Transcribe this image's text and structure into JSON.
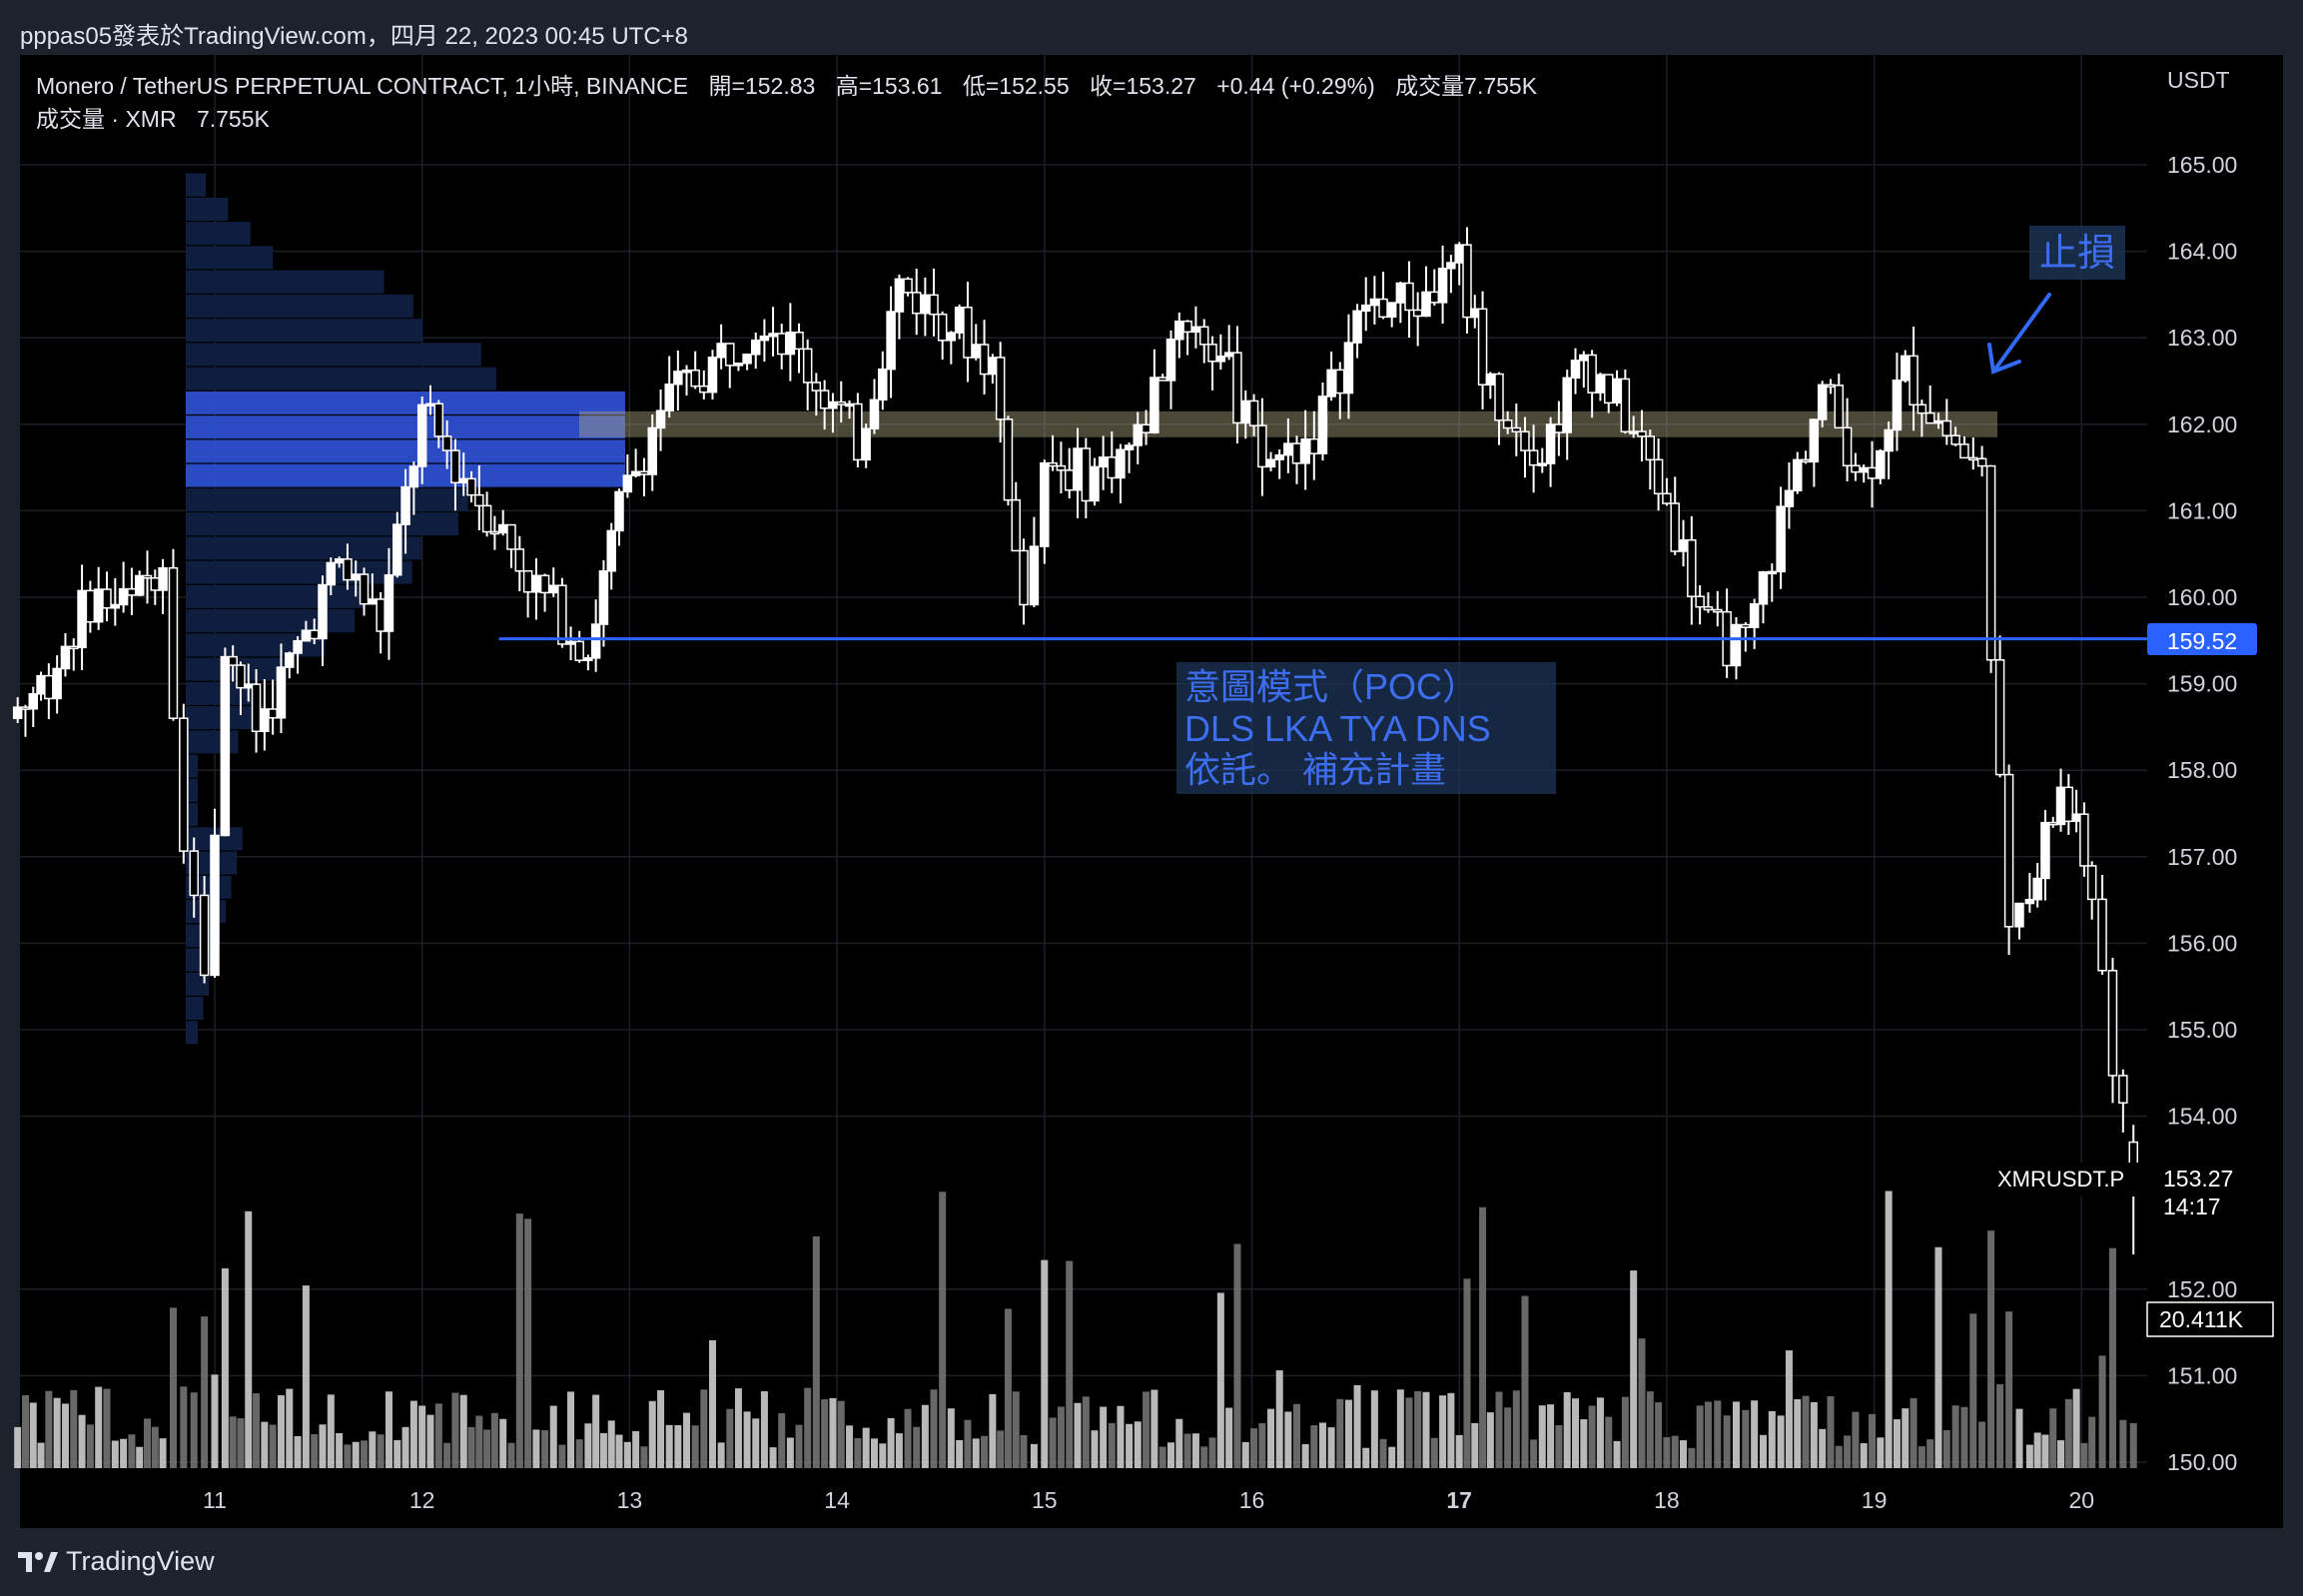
{
  "header": {
    "publisher": "pppas05發表於TradingView.com，四月 22, 2023 00:45 UTC+8"
  },
  "legend": {
    "symbol": "Monero / TetherUS PERPETUAL CONTRACT, 1小時, BINANCE",
    "open": "開=152.83",
    "high": "高=153.61",
    "low": "低=152.55",
    "close": "收=153.27",
    "change": "+0.44 (+0.29%)",
    "volume": "成交量7.755K",
    "volume_indicator_label": "成交量 · XMR",
    "volume_indicator_value": "7.755K"
  },
  "footer": {
    "brand": "TradingView"
  },
  "colors": {
    "background": "#000000",
    "candle": "#ffffff",
    "volume": "#8a8a8a",
    "accent_blue": "#2962ff",
    "annotation_text": "#3d6ef0",
    "zone": "#b3ac86",
    "profile_dark": "#0f1d3f",
    "profile_poc": "#2c4fcf"
  },
  "chart_data": {
    "type": "candlestick",
    "symbol_label": "XMRUSDT.P",
    "price_axis_unit": "USDT",
    "y_ticks": [
      "165.00",
      "164.00",
      "163.00",
      "162.00",
      "161.00",
      "160.00",
      "159.00",
      "158.00",
      "157.00",
      "156.00",
      "155.00",
      "154.00",
      "152.00",
      "151.00",
      "150.00"
    ],
    "ylim": [
      149.9,
      165.6
    ],
    "x_ticks": [
      {
        "label": "11",
        "day": 11.0
      },
      {
        "label": "12",
        "day": 12.0
      },
      {
        "label": "13",
        "day": 13.0
      },
      {
        "label": "14",
        "day": 14.0
      },
      {
        "label": "15",
        "day": 15.0
      },
      {
        "label": "16",
        "day": 16.0
      },
      {
        "label": "17",
        "day": 17.0,
        "bold": true
      },
      {
        "label": "18",
        "day": 18.0
      },
      {
        "label": "19",
        "day": 19.0
      },
      {
        "label": "20",
        "day": 20.0
      }
    ],
    "x_range_days": [
      10.05,
      20.3
    ],
    "last_price": "153.27",
    "countdown": "14:17",
    "support_line": {
      "price": 159.52,
      "label": "159.52",
      "start_day": 12.37
    },
    "resistance_zone": {
      "low": 161.85,
      "high": 162.15
    },
    "volume_label": "20.411K",
    "annotations": [
      {
        "text_lines": [
          "意圖模式（POC）",
          "DLS  LKA  TYA  DNS",
          "依託。 補充計畫"
        ]
      },
      {
        "text_lines": [
          "止損"
        ]
      }
    ],
    "ohlc_sample": [
      {
        "day": 10.05,
        "o": 158.6,
        "h": 158.9,
        "l": 158.5,
        "c": 158.7
      },
      {
        "day": 10.2,
        "o": 158.8,
        "h": 159.3,
        "l": 158.7,
        "c": 159.1
      },
      {
        "day": 10.4,
        "o": 159.5,
        "h": 160.2,
        "l": 159.4,
        "c": 160.0
      },
      {
        "day": 10.6,
        "o": 160.0,
        "h": 160.3,
        "l": 159.7,
        "c": 159.9
      },
      {
        "day": 10.75,
        "o": 160.2,
        "h": 160.8,
        "l": 160.0,
        "c": 160.5
      },
      {
        "day": 10.85,
        "o": 159.6,
        "h": 159.8,
        "l": 157.0,
        "c": 157.3
      },
      {
        "day": 10.95,
        "o": 156.9,
        "h": 157.4,
        "l": 155.2,
        "c": 155.5
      },
      {
        "day": 11.05,
        "o": 156.0,
        "h": 159.7,
        "l": 155.9,
        "c": 159.5
      },
      {
        "day": 11.2,
        "o": 159.0,
        "h": 159.5,
        "l": 158.2,
        "c": 158.5
      },
      {
        "day": 11.4,
        "o": 158.9,
        "h": 159.6,
        "l": 158.8,
        "c": 159.4
      },
      {
        "day": 11.6,
        "o": 159.6,
        "h": 160.6,
        "l": 159.5,
        "c": 160.4
      },
      {
        "day": 11.8,
        "o": 160.1,
        "h": 160.4,
        "l": 159.4,
        "c": 159.7
      },
      {
        "day": 12.0,
        "o": 161.0,
        "h": 162.6,
        "l": 160.8,
        "c": 162.1
      },
      {
        "day": 12.2,
        "o": 161.0,
        "h": 161.6,
        "l": 160.5,
        "c": 161.4
      },
      {
        "day": 12.35,
        "o": 162.0,
        "h": 162.5,
        "l": 160.6,
        "c": 160.9
      },
      {
        "day": 12.55,
        "o": 160.6,
        "h": 160.9,
        "l": 159.8,
        "c": 160.1
      },
      {
        "day": 12.8,
        "o": 160.0,
        "h": 160.5,
        "l": 158.9,
        "c": 159.4
      },
      {
        "day": 12.95,
        "o": 160.4,
        "h": 161.2,
        "l": 160.2,
        "c": 161.0
      },
      {
        "day": 13.15,
        "o": 161.4,
        "h": 162.4,
        "l": 161.3,
        "c": 162.2
      },
      {
        "day": 13.4,
        "o": 162.0,
        "h": 162.9,
        "l": 161.9,
        "c": 162.7
      },
      {
        "day": 13.65,
        "o": 162.9,
        "h": 163.6,
        "l": 162.7,
        "c": 163.3
      },
      {
        "day": 13.9,
        "o": 162.8,
        "h": 163.3,
        "l": 162.1,
        "c": 162.5
      },
      {
        "day": 14.1,
        "o": 162.1,
        "h": 162.5,
        "l": 161.4,
        "c": 161.8
      },
      {
        "day": 14.3,
        "o": 162.8,
        "h": 164.6,
        "l": 162.6,
        "c": 163.6
      },
      {
        "day": 14.55,
        "o": 163.6,
        "h": 163.9,
        "l": 162.8,
        "c": 163.2
      },
      {
        "day": 14.75,
        "o": 162.2,
        "h": 163.2,
        "l": 161.6,
        "c": 162.7
      },
      {
        "day": 14.9,
        "o": 161.7,
        "h": 162.2,
        "l": 159.9,
        "c": 160.0
      },
      {
        "day": 15.0,
        "o": 160.3,
        "h": 161.9,
        "l": 158.8,
        "c": 161.6
      },
      {
        "day": 15.2,
        "o": 161.7,
        "h": 162.1,
        "l": 161.0,
        "c": 161.4
      },
      {
        "day": 15.45,
        "o": 161.3,
        "h": 162.0,
        "l": 160.9,
        "c": 161.8
      },
      {
        "day": 15.65,
        "o": 162.8,
        "h": 163.6,
        "l": 162.6,
        "c": 163.3
      },
      {
        "day": 15.85,
        "o": 163.4,
        "h": 163.5,
        "l": 162.4,
        "c": 162.8
      },
      {
        "day": 16.05,
        "o": 162.0,
        "h": 162.4,
        "l": 161.1,
        "c": 161.5
      },
      {
        "day": 16.3,
        "o": 161.5,
        "h": 162.2,
        "l": 160.5,
        "c": 161.9
      },
      {
        "day": 16.55,
        "o": 162.6,
        "h": 163.6,
        "l": 162.5,
        "c": 163.4
      },
      {
        "day": 16.8,
        "o": 163.3,
        "h": 163.8,
        "l": 162.9,
        "c": 163.4
      },
      {
        "day": 17.0,
        "o": 163.5,
        "h": 164.2,
        "l": 163.2,
        "c": 163.8
      },
      {
        "day": 17.15,
        "o": 163.8,
        "h": 164.0,
        "l": 162.2,
        "c": 162.4
      },
      {
        "day": 17.4,
        "o": 162.4,
        "h": 162.8,
        "l": 161.3,
        "c": 161.7
      },
      {
        "day": 17.6,
        "o": 161.4,
        "h": 163.0,
        "l": 161.2,
        "c": 162.8
      },
      {
        "day": 17.8,
        "o": 162.4,
        "h": 162.9,
        "l": 161.8,
        "c": 162.1
      },
      {
        "day": 18.0,
        "o": 161.7,
        "h": 162.0,
        "l": 160.8,
        "c": 161.1
      },
      {
        "day": 18.2,
        "o": 160.4,
        "h": 160.8,
        "l": 159.3,
        "c": 159.6
      },
      {
        "day": 18.38,
        "o": 159.1,
        "h": 159.6,
        "l": 158.1,
        "c": 159.4
      },
      {
        "day": 18.55,
        "o": 160.3,
        "h": 161.0,
        "l": 160.1,
        "c": 160.9
      },
      {
        "day": 18.75,
        "o": 161.3,
        "h": 163.0,
        "l": 161.1,
        "c": 162.4
      },
      {
        "day": 18.95,
        "o": 161.9,
        "h": 162.4,
        "l": 161.0,
        "c": 161.4
      },
      {
        "day": 19.15,
        "o": 161.8,
        "h": 162.8,
        "l": 161.6,
        "c": 162.6
      },
      {
        "day": 19.35,
        "o": 162.4,
        "h": 162.7,
        "l": 161.6,
        "c": 161.9
      },
      {
        "day": 19.52,
        "o": 162.1,
        "h": 162.5,
        "l": 161.2,
        "c": 161.4
      },
      {
        "day": 19.65,
        "o": 161.4,
        "h": 161.5,
        "l": 154.3,
        "c": 155.9
      },
      {
        "day": 19.75,
        "o": 155.9,
        "h": 157.2,
        "l": 155.5,
        "c": 156.5
      },
      {
        "day": 19.9,
        "o": 157.0,
        "h": 158.6,
        "l": 156.6,
        "c": 157.8
      },
      {
        "day": 20.05,
        "o": 157.2,
        "h": 157.4,
        "l": 156.2,
        "c": 156.6
      },
      {
        "day": 20.15,
        "o": 155.8,
        "h": 156.1,
        "l": 154.4,
        "c": 154.7
      },
      {
        "day": 20.25,
        "o": 153.7,
        "h": 153.9,
        "l": 152.4,
        "c": 153.27
      }
    ]
  }
}
